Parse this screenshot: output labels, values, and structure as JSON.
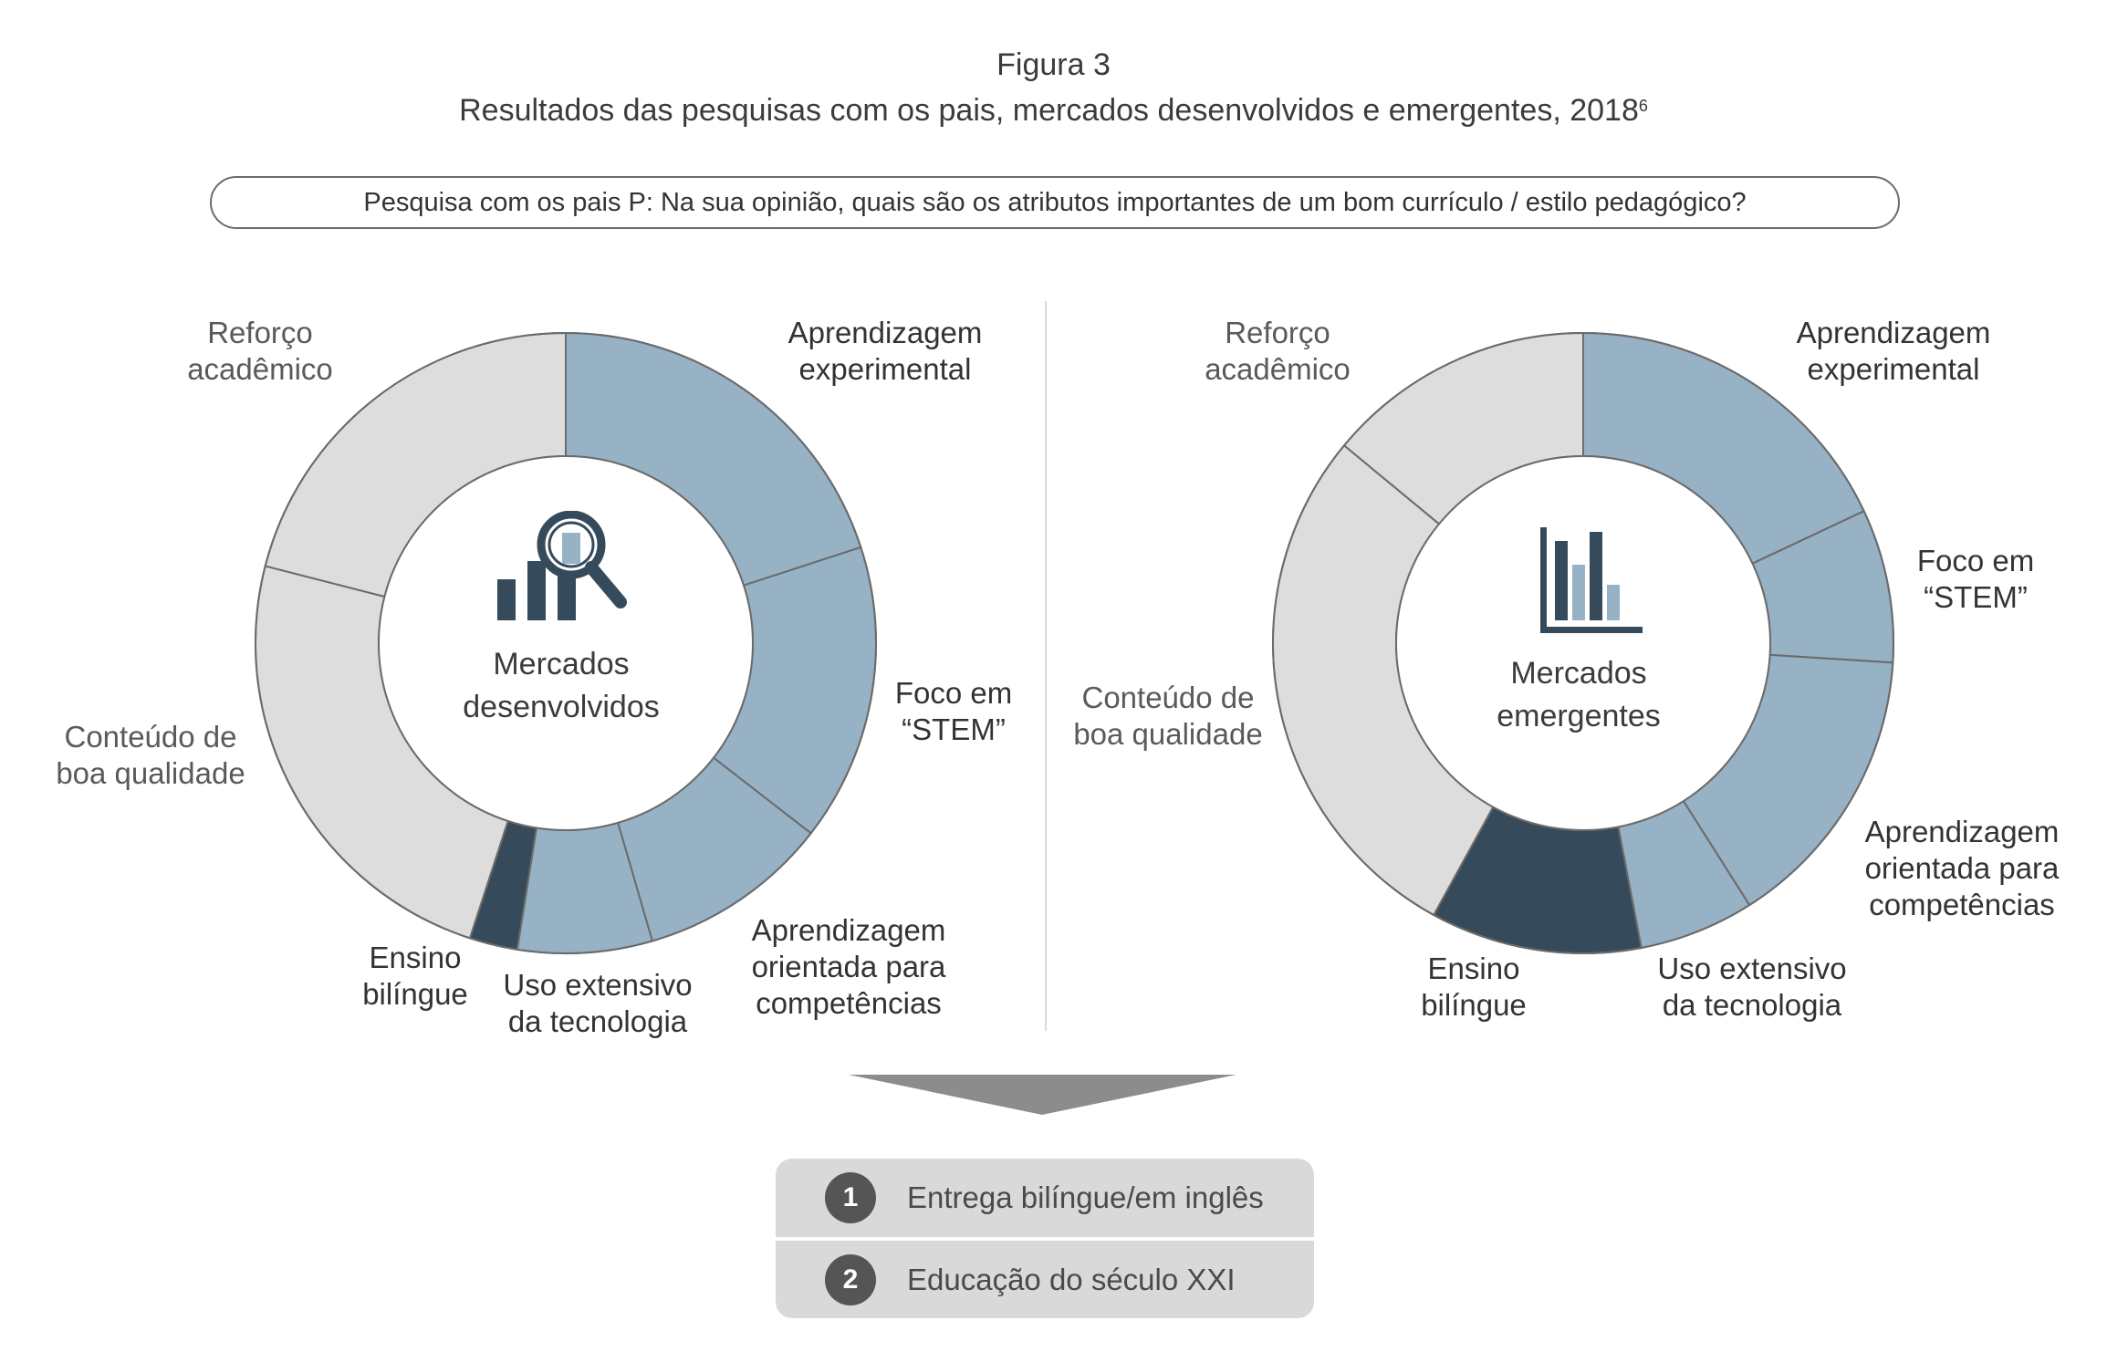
{
  "figure_label": "Figura 3",
  "figure_title": "Resultados das pesquisas com os pais, mercados desenvolvidos e emergentes, 2018",
  "figure_title_sup": "6",
  "question": "Pesquisa com os pais P: Na sua opinião, quais são os atributos importantes de um bom currículo / estilo pedagógico?",
  "colors": {
    "blue": "#97b1c5",
    "dark": "#354b5b",
    "light": "#dddddd",
    "outline": "#6b6b6b",
    "icon": "#354b5b"
  },
  "chart_data": [
    {
      "type": "pie",
      "center_label": [
        "Mercados",
        "desenvolvidos"
      ],
      "center_icon": "magnifier-chart-icon",
      "slices": [
        {
          "label": "Aprendizagem experimental",
          "value": 20,
          "color": "#97b1c5"
        },
        {
          "label": "Foco em “STEM”",
          "value": 15.5,
          "color": "#97b1c5"
        },
        {
          "label": "Aprendizagem orientada para competências",
          "value": 10,
          "color": "#97b1c5"
        },
        {
          "label": "Uso extensivo da tecnologia",
          "value": 7,
          "color": "#97b1c5"
        },
        {
          "label": "Ensino bilíngue",
          "value": 2.5,
          "color": "#354b5b"
        },
        {
          "label": "Conteúdo de boa qualidade",
          "value": 24,
          "color": "#dddddd"
        },
        {
          "label": "Reforço acadêmico",
          "value": 21,
          "color": "#dddddd"
        }
      ]
    },
    {
      "type": "pie",
      "center_label": [
        "Mercados",
        "emergentes"
      ],
      "center_icon": "bar-chart-icon",
      "slices": [
        {
          "label": "Aprendizagem experimental",
          "value": 18,
          "color": "#97b1c5"
        },
        {
          "label": "Foco em “STEM”",
          "value": 8,
          "color": "#97b1c5"
        },
        {
          "label": "Aprendizagem orientada para competências",
          "value": 15,
          "color": "#97b1c5"
        },
        {
          "label": "Uso extensivo da tecnologia",
          "value": 6,
          "color": "#97b1c5"
        },
        {
          "label": "Ensino bilíngue",
          "value": 11,
          "color": "#354b5b"
        },
        {
          "label": "Conteúdo de boa qualidade",
          "value": 28,
          "color": "#dddddd"
        },
        {
          "label": "Reforço acadêmico",
          "value": 14,
          "color": "#dddddd"
        }
      ]
    }
  ],
  "labels_left": {
    "reforco": [
      "Reforço",
      "acadêmico"
    ],
    "aprendizagem_exp": [
      "Aprendizagem",
      "experimental"
    ],
    "foco": [
      "Foco em",
      "“STEM”"
    ],
    "competencias": [
      "Aprendizagem",
      "orientada para",
      "competências"
    ],
    "uso": [
      "Uso extensivo",
      "da tecnologia"
    ],
    "ensino": [
      "Ensino",
      "bilíngue"
    ],
    "conteudo": [
      "Conteúdo de",
      "boa qualidade"
    ]
  },
  "labels_right": {
    "reforco": [
      "Reforço",
      "acadêmico"
    ],
    "aprendizagem_exp": [
      "Aprendizagem",
      "experimental"
    ],
    "foco": [
      "Foco em",
      "“STEM”"
    ],
    "competencias": [
      "Aprendizagem",
      "orientada para",
      "competências"
    ],
    "uso": [
      "Uso extensivo",
      "da tecnologia"
    ],
    "ensino": [
      "Ensino",
      "bilíngue"
    ],
    "conteudo": [
      "Conteúdo de",
      "boa qualidade"
    ]
  },
  "results": [
    {
      "number": "1",
      "text": "Entrega bilíngue/em inglês"
    },
    {
      "number": "2",
      "text": "Educação do século XXI"
    }
  ]
}
